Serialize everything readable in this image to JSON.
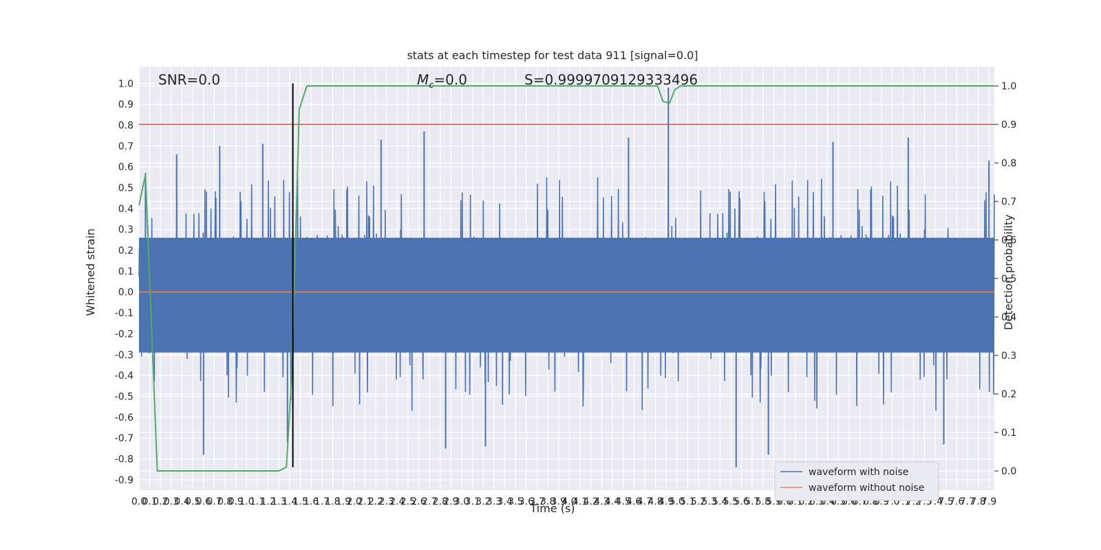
{
  "chart_data": {
    "type": "line",
    "title": "stats at each timestep for test data 911 [signal=0.0]",
    "xlabel": "Time (s)",
    "ylabel": "Whitened strain",
    "y2label": "Detection probability",
    "xlim": [
      0.0,
      7.95
    ],
    "ylim": [
      -0.95,
      1.08
    ],
    "y2lim": [
      -0.05,
      1.05
    ],
    "x_ticks": [
      "0.0",
      "0.1",
      "0.2",
      "0.3",
      "0.4",
      "0.5",
      "0.6",
      "0.7",
      "0.8",
      "0.9",
      "1.0",
      "1.1",
      "1.2",
      "1.3",
      "1.4",
      "1.5",
      "1.6",
      "1.7",
      "1.8",
      "1.9",
      "2.0",
      "2.1",
      "2.2",
      "2.3",
      "2.4",
      "2.5",
      "2.6",
      "2.7",
      "2.8",
      "2.9",
      "3.0",
      "3.1",
      "3.2",
      "3.3",
      "3.4",
      "3.5",
      "3.6",
      "3.7",
      "3.8",
      "3.9",
      "4.0",
      "4.1",
      "4.2",
      "4.3",
      "4.4",
      "4.5",
      "4.6",
      "4.7",
      "4.8",
      "4.9",
      "5.0",
      "5.1",
      "5.2",
      "5.3",
      "5.4",
      "5.5",
      "5.6",
      "5.7",
      "5.8",
      "5.9",
      "6.0",
      "6.1",
      "6.2",
      "6.3",
      "6.4",
      "6.5",
      "6.6",
      "6.7",
      "6.8",
      "6.9",
      "7.0",
      "7.1",
      "7.2",
      "7.3",
      "7.4",
      "7.5",
      "7.6",
      "7.7",
      "7.8",
      "7.9"
    ],
    "y_ticks": [
      "1.0",
      "0.9",
      "0.8",
      "0.7",
      "0.6",
      "0.5",
      "0.4",
      "0.3",
      "0.2",
      "0.1",
      "0.0",
      "-0.1",
      "-0.2",
      "-0.3",
      "-0.4",
      "-0.5",
      "-0.6",
      "-0.7",
      "-0.8",
      "-0.9"
    ],
    "y2_ticks": [
      "1.0",
      "0.9",
      "0.8",
      "0.7",
      "0.6",
      "0.5",
      "0.4",
      "0.3",
      "0.2",
      "0.1",
      "0.0"
    ],
    "grid": true,
    "annotations": {
      "snr": "SNR=0.0",
      "mc_symbol": "M",
      "mc_subscript": "c",
      "mc_value": "=0.0",
      "s": "S=0.9999709129333496"
    },
    "legend": {
      "placement": "lower-right",
      "entries": [
        "waveform with noise",
        "waveform without noise"
      ]
    },
    "series": [
      {
        "name": "waveform with noise",
        "color": "#4c72b0",
        "description_envelope": {
          "typical_abs_max": 0.45,
          "extreme_min": -0.84,
          "extreme_max": 0.98
        },
        "notable_spikes": [
          {
            "x": 0.06,
            "y": 0.57
          },
          {
            "x": 0.35,
            "y": 0.66
          },
          {
            "x": 0.6,
            "y": -0.78
          },
          {
            "x": 0.75,
            "y": 0.7
          },
          {
            "x": 1.15,
            "y": 0.71
          },
          {
            "x": 1.38,
            "y": -0.72
          },
          {
            "x": 2.25,
            "y": 0.73
          },
          {
            "x": 2.65,
            "y": 0.77
          },
          {
            "x": 2.85,
            "y": -0.75
          },
          {
            "x": 3.22,
            "y": -0.74
          },
          {
            "x": 4.55,
            "y": 0.74
          },
          {
            "x": 4.92,
            "y": 0.98
          },
          {
            "x": 5.55,
            "y": -0.84
          },
          {
            "x": 5.85,
            "y": -0.78
          },
          {
            "x": 6.45,
            "y": 0.72
          },
          {
            "x": 7.15,
            "y": 0.74
          },
          {
            "x": 7.48,
            "y": -0.73
          },
          {
            "x": 7.9,
            "y": 0.63
          }
        ]
      },
      {
        "name": "waveform without noise",
        "color": "#dd8452",
        "x": [
          0.0,
          7.95
        ],
        "y": [
          0.0,
          0.0
        ]
      },
      {
        "name": "detection probability",
        "color": "#55a868",
        "axis": "right",
        "x": [
          0.0,
          0.06,
          0.17,
          0.22,
          1.3,
          1.37,
          1.42,
          1.46,
          1.49,
          1.56,
          1.6,
          4.82,
          4.87,
          4.93,
          4.98,
          5.03,
          7.95
        ],
        "y": [
          0.69,
          0.77,
          0.0,
          0.0,
          0.0,
          0.01,
          0.25,
          0.65,
          0.94,
          1.0,
          1.0,
          1.0,
          0.96,
          0.955,
          0.99,
          1.0,
          1.0
        ]
      }
    ],
    "threshold": {
      "axis": "right",
      "value": 0.9,
      "color": "#c44e52"
    },
    "marker": {
      "x": 1.43,
      "y_from": -0.84,
      "y_to": 1.0,
      "color": "#000000"
    }
  }
}
